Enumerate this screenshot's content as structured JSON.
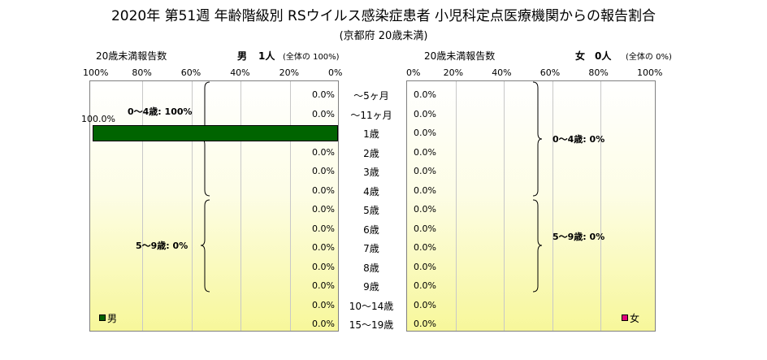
{
  "title": "2020年 第51週 年齢階級別 RSウイルス感染症患者 小児科定点医療機関からの報告割合",
  "subtitle": "(京都府 20歳未満)",
  "male": {
    "report_label": "20歳未満報告数",
    "sex_label": "男",
    "count_label": "1人",
    "share_label": "(全体の 100%)",
    "legend": "男",
    "color": "#006400",
    "ticks": [
      "100%",
      "80%",
      "60%",
      "40%",
      "20%",
      "0%"
    ],
    "values": [
      "0.0%",
      "0.0%",
      "100.0%",
      "0.0%",
      "0.0%",
      "0.0%",
      "0.0%",
      "0.0%",
      "0.0%",
      "0.0%",
      "0.0%",
      "0.0%",
      "0.0%"
    ],
    "group_0_4": "0～4歳: 100%",
    "group_5_9": "5～9歳: 0%"
  },
  "female": {
    "report_label": "20歳未満報告数",
    "sex_label": "女",
    "count_label": "0人",
    "share_label": "(全体の 0%)",
    "legend": "女",
    "color": "#e0007a",
    "ticks": [
      "0%",
      "20%",
      "40%",
      "60%",
      "80%",
      "100%"
    ],
    "values": [
      "0.0%",
      "0.0%",
      "0.0%",
      "0.0%",
      "0.0%",
      "0.0%",
      "0.0%",
      "0.0%",
      "0.0%",
      "0.0%",
      "0.0%",
      "0.0%",
      "0.0%"
    ],
    "group_0_4": "0～4歳: 0%",
    "group_5_9": "5～9歳: 0%"
  },
  "ages": [
    "～5ヶ月",
    "～11ヶ月",
    "1歳",
    "2歳",
    "3歳",
    "4歳",
    "5歳",
    "6歳",
    "7歳",
    "8歳",
    "9歳",
    "10～14歳",
    "15～19歳"
  ],
  "chart_data": {
    "type": "bar",
    "orientation": "horizontal",
    "layout": "population-pyramid",
    "categories": [
      "～5ヶ月",
      "～11ヶ月",
      "1歳",
      "2歳",
      "3歳",
      "4歳",
      "5歳",
      "6歳",
      "7歳",
      "8歳",
      "9歳",
      "10～14歳",
      "15～19歳"
    ],
    "series": [
      {
        "name": "男",
        "values": [
          0,
          0,
          100,
          0,
          0,
          0,
          0,
          0,
          0,
          0,
          0,
          0,
          0
        ]
      },
      {
        "name": "女",
        "values": [
          0,
          0,
          0,
          0,
          0,
          0,
          0,
          0,
          0,
          0,
          0,
          0,
          0
        ]
      }
    ],
    "xlim": [
      0,
      100
    ],
    "grid": true
  }
}
